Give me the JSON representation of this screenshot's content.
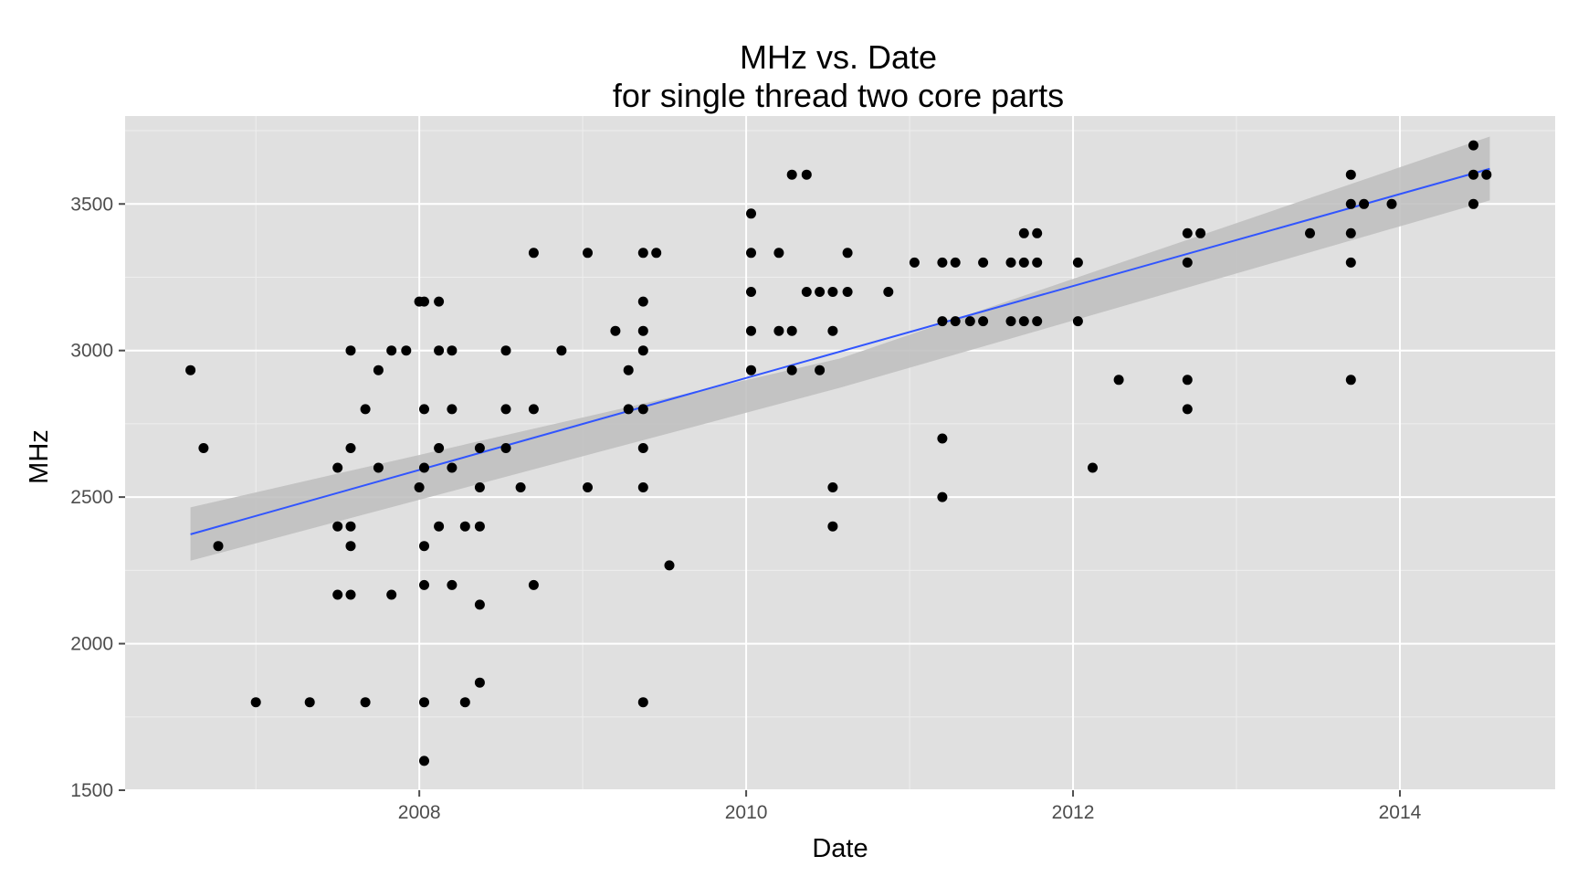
{
  "chart_data": {
    "type": "scatter",
    "title": "MHz vs. Date",
    "subtitle": "for single thread two core parts",
    "xlabel": "Date",
    "ylabel": "MHz",
    "xlim": [
      2006.2,
      2014.95
    ],
    "ylim": [
      1500,
      3800
    ],
    "x_ticks": [
      2008,
      2010,
      2012,
      2014
    ],
    "x_tick_labels": [
      "2008",
      "2010",
      "2012",
      "2014"
    ],
    "y_ticks": [
      1500,
      2000,
      2500,
      3000,
      3500
    ],
    "y_tick_labels": [
      "1500",
      "2000",
      "2500",
      "3000",
      "3500"
    ],
    "grid": true,
    "panel_background": "#e0e0e0",
    "point_color": "#000000",
    "trend": {
      "method": "linear fit with 95% confidence band",
      "color": "#3155ff",
      "band_color": "#bdbdbd",
      "x_range": [
        2006.6,
        2014.55
      ],
      "y_start": 2373,
      "y_end": 3620,
      "band_start": [
        2283,
        2465
      ],
      "band_mid": [
        2873,
        2973
      ],
      "band_end": [
        3512,
        3730
      ]
    },
    "points": [
      [
        2006.6,
        2933
      ],
      [
        2006.68,
        2667
      ],
      [
        2006.77,
        2333
      ],
      [
        2007.0,
        1800
      ],
      [
        2007.33,
        1800
      ],
      [
        2007.5,
        2600
      ],
      [
        2007.5,
        2400
      ],
      [
        2007.5,
        2167
      ],
      [
        2007.58,
        3000
      ],
      [
        2007.58,
        2667
      ],
      [
        2007.58,
        2400
      ],
      [
        2007.58,
        2333
      ],
      [
        2007.58,
        2167
      ],
      [
        2007.67,
        2800
      ],
      [
        2007.67,
        1800
      ],
      [
        2007.75,
        2933
      ],
      [
        2007.75,
        2600
      ],
      [
        2007.83,
        3000
      ],
      [
        2007.83,
        2167
      ],
      [
        2007.92,
        3000
      ],
      [
        2008.0,
        3167
      ],
      [
        2008.0,
        2533
      ],
      [
        2008.03,
        3167
      ],
      [
        2008.03,
        2800
      ],
      [
        2008.03,
        2600
      ],
      [
        2008.03,
        2333
      ],
      [
        2008.03,
        2200
      ],
      [
        2008.03,
        1800
      ],
      [
        2008.03,
        1600
      ],
      [
        2008.12,
        3167
      ],
      [
        2008.12,
        3000
      ],
      [
        2008.12,
        2667
      ],
      [
        2008.12,
        2400
      ],
      [
        2008.2,
        3000
      ],
      [
        2008.2,
        2800
      ],
      [
        2008.2,
        2600
      ],
      [
        2008.2,
        2200
      ],
      [
        2008.28,
        2400
      ],
      [
        2008.28,
        1800
      ],
      [
        2008.37,
        2667
      ],
      [
        2008.37,
        2533
      ],
      [
        2008.37,
        2400
      ],
      [
        2008.37,
        2133
      ],
      [
        2008.37,
        1867
      ],
      [
        2008.53,
        3000
      ],
      [
        2008.53,
        2800
      ],
      [
        2008.53,
        2667
      ],
      [
        2008.62,
        2533
      ],
      [
        2008.7,
        3333
      ],
      [
        2008.7,
        2800
      ],
      [
        2008.7,
        2200
      ],
      [
        2008.87,
        3000
      ],
      [
        2009.03,
        3333
      ],
      [
        2009.03,
        2533
      ],
      [
        2009.2,
        3067
      ],
      [
        2009.28,
        2933
      ],
      [
        2009.28,
        2800
      ],
      [
        2009.37,
        3333
      ],
      [
        2009.37,
        3167
      ],
      [
        2009.37,
        3067
      ],
      [
        2009.37,
        3000
      ],
      [
        2009.37,
        2800
      ],
      [
        2009.37,
        2667
      ],
      [
        2009.37,
        2533
      ],
      [
        2009.37,
        1800
      ],
      [
        2009.45,
        3333
      ],
      [
        2009.53,
        2267
      ],
      [
        2010.03,
        3467
      ],
      [
        2010.03,
        3333
      ],
      [
        2010.03,
        3200
      ],
      [
        2010.03,
        3067
      ],
      [
        2010.03,
        2933
      ],
      [
        2010.2,
        3333
      ],
      [
        2010.2,
        3067
      ],
      [
        2010.28,
        3600
      ],
      [
        2010.28,
        3067
      ],
      [
        2010.28,
        2933
      ],
      [
        2010.37,
        3600
      ],
      [
        2010.37,
        3200
      ],
      [
        2010.45,
        3200
      ],
      [
        2010.45,
        2933
      ],
      [
        2010.53,
        3200
      ],
      [
        2010.53,
        3067
      ],
      [
        2010.53,
        2533
      ],
      [
        2010.53,
        2400
      ],
      [
        2010.62,
        3333
      ],
      [
        2010.62,
        3200
      ],
      [
        2010.87,
        3200
      ],
      [
        2011.03,
        3300
      ],
      [
        2011.2,
        3300
      ],
      [
        2011.2,
        3100
      ],
      [
        2011.2,
        2700
      ],
      [
        2011.2,
        2500
      ],
      [
        2011.28,
        3300
      ],
      [
        2011.28,
        3100
      ],
      [
        2011.37,
        3100
      ],
      [
        2011.45,
        3300
      ],
      [
        2011.45,
        3100
      ],
      [
        2011.62,
        3300
      ],
      [
        2011.62,
        3100
      ],
      [
        2011.7,
        3400
      ],
      [
        2011.7,
        3300
      ],
      [
        2011.7,
        3100
      ],
      [
        2011.78,
        3400
      ],
      [
        2011.78,
        3300
      ],
      [
        2011.78,
        3100
      ],
      [
        2012.03,
        3300
      ],
      [
        2012.03,
        3100
      ],
      [
        2012.12,
        2600
      ],
      [
        2012.28,
        2900
      ],
      [
        2012.7,
        3400
      ],
      [
        2012.7,
        3300
      ],
      [
        2012.7,
        2900
      ],
      [
        2012.7,
        2800
      ],
      [
        2012.78,
        3400
      ],
      [
        2013.45,
        3400
      ],
      [
        2013.7,
        3600
      ],
      [
        2013.7,
        3500
      ],
      [
        2013.7,
        3400
      ],
      [
        2013.7,
        3300
      ],
      [
        2013.7,
        2900
      ],
      [
        2013.78,
        3500
      ],
      [
        2013.95,
        3500
      ],
      [
        2014.45,
        3700
      ],
      [
        2014.45,
        3600
      ],
      [
        2014.45,
        3500
      ],
      [
        2014.53,
        3600
      ]
    ]
  }
}
